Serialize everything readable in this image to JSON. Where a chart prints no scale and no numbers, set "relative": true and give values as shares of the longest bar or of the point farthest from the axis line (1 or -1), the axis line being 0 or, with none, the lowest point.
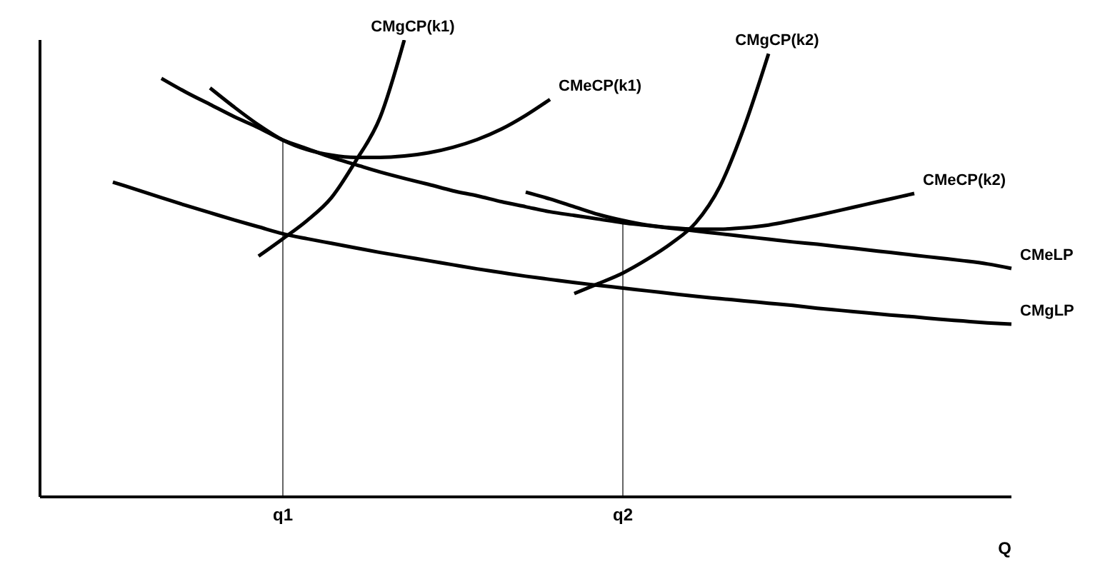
{
  "chart_data": {
    "type": "line",
    "relative": true,
    "xlabel": "Q",
    "grid": false,
    "legend": false,
    "marker": "none",
    "line_style": "solid",
    "categories": [
      null,
      null,
      null,
      null,
      null,
      null,
      null,
      null,
      null,
      null,
      "q1",
      null,
      null,
      null,
      null,
      null,
      null,
      null,
      null,
      null,
      null,
      null,
      null,
      null,
      "q2",
      null,
      null,
      null,
      null,
      null,
      null,
      null,
      null,
      null,
      null,
      null,
      null,
      null,
      null,
      null,
      null
    ],
    "ref_lines": [
      {
        "axis": "x",
        "value": "q1",
        "color": "#666666"
      },
      {
        "axis": "x",
        "value": "q2",
        "color": "#666666"
      }
    ],
    "series": [
      {
        "name": "CMeLP",
        "color": "#000000",
        "values": [
          null,
          null,
          null,
          null,
          null,
          0.916,
          0.886,
          0.859,
          0.832,
          0.808,
          0.781,
          0.762,
          0.743,
          0.727,
          0.711,
          0.697,
          0.684,
          0.67,
          0.659,
          0.646,
          0.635,
          0.624,
          0.616,
          0.608,
          0.6,
          0.594,
          0.588,
          0.582,
          0.576,
          0.57,
          0.564,
          0.558,
          0.553,
          0.547,
          0.541,
          0.535,
          0.529,
          0.523,
          0.517,
          0.51,
          0.5
        ]
      },
      {
        "name": "CMgLP",
        "color": "#000000",
        "values": [
          null,
          null,
          null,
          0.689,
          0.672,
          0.655,
          0.638,
          0.622,
          0.606,
          0.591,
          0.576,
          0.565,
          0.555,
          0.545,
          0.535,
          0.526,
          0.517,
          0.508,
          0.499,
          0.491,
          0.483,
          0.476,
          0.469,
          0.463,
          0.457,
          0.451,
          0.445,
          0.439,
          0.434,
          0.429,
          0.424,
          0.419,
          0.413,
          0.408,
          0.403,
          0.398,
          0.394,
          0.389,
          0.385,
          0.381,
          0.378
        ]
      },
      {
        "name": "CMeCP(k1)",
        "color": "#000000",
        "values": [
          null,
          null,
          null,
          null,
          null,
          null,
          null,
          0.895,
          0.853,
          0.814,
          0.781,
          0.76,
          0.748,
          0.743,
          0.743,
          0.746,
          0.753,
          0.765,
          0.782,
          0.805,
          0.835,
          0.87,
          null,
          null,
          null,
          null,
          null,
          null,
          null,
          null,
          null,
          null,
          null,
          null,
          null,
          null,
          null,
          null,
          null,
          null,
          null
        ]
      },
      {
        "name": "CMgCP(k1)",
        "color": "#000000",
        "values": [
          null,
          null,
          null,
          null,
          null,
          null,
          null,
          null,
          null,
          0.527,
          0.565,
          0.605,
          0.655,
          0.735,
          0.83,
          1.0,
          null,
          null,
          null,
          null,
          null,
          null,
          null,
          null,
          null,
          null,
          null,
          null,
          null,
          null,
          null,
          null,
          null,
          null,
          null,
          null,
          null,
          null,
          null,
          null,
          null
        ]
      },
      {
        "name": "CMeCP(k2)",
        "color": "#000000",
        "values": [
          null,
          null,
          null,
          null,
          null,
          null,
          null,
          null,
          null,
          null,
          null,
          null,
          null,
          null,
          null,
          null,
          null,
          null,
          null,
          null,
          0.667,
          0.652,
          0.635,
          0.618,
          0.605,
          0.595,
          0.589,
          0.586,
          0.586,
          0.589,
          0.595,
          0.605,
          0.616,
          0.628,
          0.64,
          0.652,
          0.664,
          null,
          null,
          null,
          null
        ]
      },
      {
        "name": "CMgCP(k2)",
        "color": "#000000",
        "values": [
          null,
          null,
          null,
          null,
          null,
          null,
          null,
          null,
          null,
          null,
          null,
          null,
          null,
          null,
          null,
          null,
          null,
          null,
          null,
          null,
          null,
          null,
          0.445,
          0.467,
          0.49,
          0.52,
          0.555,
          0.6,
          0.68,
          0.81,
          0.97,
          null,
          null,
          null,
          null,
          null,
          null,
          null,
          null,
          null,
          null
        ]
      }
    ]
  }
}
